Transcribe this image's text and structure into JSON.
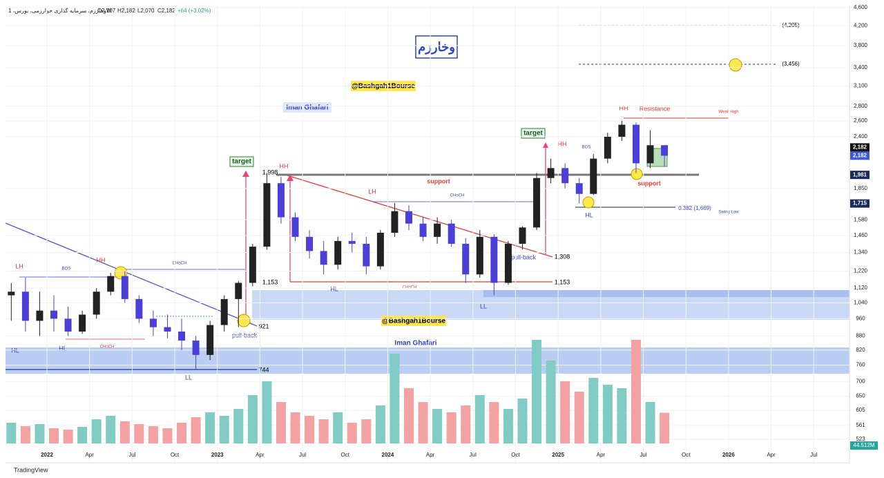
{
  "chart_data": {
    "type": "candlestick",
    "header": {
      "symbol": "وخارزم، سرمایه گذاری خوارزمی، بورس، 1W",
      "open": "O2,107",
      "high": "H2,182",
      "low": "L2,070",
      "close": "C2,182",
      "change": "+64 (+3.02%)"
    },
    "footer": "TradingView",
    "log_scale": true,
    "ylim": [
      523,
      4600
    ],
    "yticks": [
      {
        "value": 4600,
        "label": "4,600"
      },
      {
        "value": 4200,
        "label": "4,200"
      },
      {
        "value": 3800,
        "label": "3,800"
      },
      {
        "value": 3400,
        "label": "3,400"
      },
      {
        "value": 3100,
        "label": "3,100"
      },
      {
        "value": 2800,
        "label": "2,800"
      },
      {
        "value": 2600,
        "label": "2,600"
      },
      {
        "value": 2400,
        "label": "2,400"
      },
      {
        "value": 1850,
        "label": "1,850"
      },
      {
        "value": 1580,
        "label": "1,580"
      },
      {
        "value": 1460,
        "label": "1,460"
      },
      {
        "value": 1340,
        "label": "1,340"
      },
      {
        "value": 1220,
        "label": "1,220"
      },
      {
        "value": 1120,
        "label": "1,120"
      },
      {
        "value": 1040,
        "label": "1,040"
      },
      960,
      880,
      820,
      760,
      700,
      650,
      605,
      561,
      523
    ],
    "price_tags": [
      {
        "value": 2182,
        "label": "2,182"
      },
      {
        "value": 2182,
        "label": "2,182"
      },
      {
        "value": 1981,
        "label": "1,981"
      },
      {
        "value": 1715,
        "label": "1,715"
      }
    ],
    "volume_tag": "44.512M",
    "xticks": [
      {
        "value": "2022-01",
        "label": "2022"
      },
      {
        "value": "2022-04",
        "label": "Apr"
      },
      {
        "value": "2022-07",
        "label": "Jul"
      },
      {
        "value": "2022-10",
        "label": "Oct"
      },
      {
        "value": "2023-01",
        "label": "2023"
      },
      {
        "value": "2023-04",
        "label": "Apr"
      },
      {
        "value": "2023-07",
        "label": "Jul"
      },
      {
        "value": "2023-10",
        "label": "Oct"
      },
      {
        "value": "2024-01",
        "label": "2024"
      },
      {
        "value": "2024-04",
        "label": "Apr"
      },
      {
        "value": "2024-07",
        "label": "Jul"
      },
      {
        "value": "2024-10",
        "label": "Oct"
      },
      {
        "value": "2025-01",
        "label": "2025"
      },
      {
        "value": "2025-04",
        "label": "Apr"
      },
      {
        "value": "2025-07",
        "label": "Jul"
      },
      {
        "value": "2025-10",
        "label": "Oct"
      },
      {
        "value": "2026-01",
        "label": "2026"
      },
      {
        "value": "2026-04",
        "label": "Apr"
      },
      {
        "value": "2026-07",
        "label": "Jul"
      }
    ],
    "candles": [
      {
        "date": "2021-10",
        "open": 1080,
        "high": 1150,
        "low": 950,
        "close": 1100
      },
      {
        "date": "2021-11",
        "open": 1100,
        "high": 1180,
        "low": 900,
        "close": 950
      },
      {
        "date": "2021-12",
        "open": 950,
        "high": 1100,
        "low": 880,
        "close": 1000
      },
      {
        "date": "2022-01",
        "open": 1000,
        "high": 1080,
        "low": 900,
        "close": 960
      },
      {
        "date": "2022-02",
        "open": 960,
        "high": 1020,
        "low": 880,
        "close": 900
      },
      {
        "date": "2022-03",
        "open": 900,
        "high": 1000,
        "low": 890,
        "close": 980
      },
      {
        "date": "2022-04",
        "open": 980,
        "high": 1120,
        "low": 960,
        "close": 1100
      },
      {
        "date": "2022-05",
        "open": 1100,
        "high": 1210,
        "low": 1080,
        "close": 1190
      },
      {
        "date": "2022-06",
        "open": 1190,
        "high": 1220,
        "low": 1040,
        "close": 1060
      },
      {
        "date": "2022-07",
        "open": 1060,
        "high": 1080,
        "low": 940,
        "close": 960
      },
      {
        "date": "2022-08",
        "open": 960,
        "high": 1000,
        "low": 880,
        "close": 920
      },
      {
        "date": "2022-09",
        "open": 920,
        "high": 980,
        "low": 870,
        "close": 900
      },
      {
        "date": "2022-10",
        "open": 900,
        "high": 960,
        "low": 820,
        "close": 860
      },
      {
        "date": "2022-11",
        "open": 860,
        "high": 880,
        "low": 744,
        "close": 800
      },
      {
        "date": "2022-12",
        "open": 800,
        "high": 950,
        "low": 780,
        "close": 930
      },
      {
        "date": "2023-01",
        "open": 930,
        "high": 1080,
        "low": 900,
        "close": 1060
      },
      {
        "date": "2023-02",
        "open": 1060,
        "high": 1160,
        "low": 921,
        "close": 1150
      },
      {
        "date": "2023-03",
        "open": 1150,
        "high": 1400,
        "low": 1130,
        "close": 1380
      },
      {
        "date": "2023-04",
        "open": 1380,
        "high": 1998,
        "low": 1360,
        "close": 1900
      },
      {
        "date": "2023-05",
        "open": 1900,
        "high": 1960,
        "low": 1550,
        "close": 1600
      },
      {
        "date": "2023-06",
        "open": 1600,
        "high": 1640,
        "low": 1420,
        "close": 1450
      },
      {
        "date": "2023-07",
        "open": 1450,
        "high": 1500,
        "low": 1300,
        "close": 1350
      },
      {
        "date": "2023-08",
        "open": 1350,
        "high": 1420,
        "low": 1200,
        "close": 1260
      },
      {
        "date": "2023-09",
        "open": 1260,
        "high": 1450,
        "low": 1230,
        "close": 1420
      },
      {
        "date": "2023-10",
        "open": 1420,
        "high": 1480,
        "low": 1340,
        "close": 1400
      },
      {
        "date": "2023-11",
        "open": 1400,
        "high": 1450,
        "low": 1200,
        "close": 1250
      },
      {
        "date": "2023-12",
        "open": 1250,
        "high": 1500,
        "low": 1230,
        "close": 1480
      },
      {
        "date": "2024-01",
        "open": 1480,
        "high": 1720,
        "low": 1450,
        "close": 1650
      },
      {
        "date": "2024-02",
        "open": 1650,
        "high": 1700,
        "low": 1500,
        "close": 1550
      },
      {
        "date": "2024-03",
        "open": 1550,
        "high": 1600,
        "low": 1420,
        "close": 1450
      },
      {
        "date": "2024-04",
        "open": 1450,
        "high": 1600,
        "low": 1400,
        "close": 1550
      },
      {
        "date": "2024-05",
        "open": 1550,
        "high": 1580,
        "low": 1380,
        "close": 1400
      },
      {
        "date": "2024-06",
        "open": 1400,
        "high": 1440,
        "low": 1150,
        "close": 1200
      },
      {
        "date": "2024-07",
        "open": 1200,
        "high": 1500,
        "low": 1180,
        "close": 1450
      },
      {
        "date": "2024-08",
        "open": 1450,
        "high": 1470,
        "low": 1080,
        "close": 1150
      },
      {
        "date": "2024-09",
        "open": 1150,
        "high": 1420,
        "low": 1140,
        "close": 1400
      },
      {
        "date": "2024-10",
        "open": 1400,
        "high": 1530,
        "low": 1360,
        "close": 1520
      },
      {
        "date": "2024-11",
        "open": 1520,
        "high": 2000,
        "low": 1500,
        "close": 1950
      },
      {
        "date": "2024-12",
        "open": 1950,
        "high": 2150,
        "low": 1900,
        "close": 2050
      },
      {
        "date": "2025-01",
        "open": 2050,
        "high": 2100,
        "low": 1850,
        "close": 1900
      },
      {
        "date": "2025-02",
        "open": 1900,
        "high": 1950,
        "low": 1715,
        "close": 1800
      },
      {
        "date": "2025-03",
        "open": 1800,
        "high": 2200,
        "low": 1790,
        "close": 2150
      },
      {
        "date": "2025-04",
        "open": 2150,
        "high": 2450,
        "low": 2100,
        "close": 2400
      },
      {
        "date": "2025-05",
        "open": 2400,
        "high": 2600,
        "low": 2350,
        "close": 2550
      },
      {
        "date": "2025-06",
        "open": 2550,
        "high": 2580,
        "low": 2000,
        "close": 2100
      },
      {
        "date": "2025-07",
        "open": 2100,
        "high": 2480,
        "low": 2050,
        "close": 2300
      },
      {
        "date": "2025-08",
        "open": 2300,
        "high": 2300,
        "low": 2070,
        "close": 2182
      }
    ],
    "volume": [
      30,
      25,
      28,
      22,
      20,
      24,
      35,
      40,
      32,
      28,
      25,
      22,
      30,
      38,
      45,
      40,
      50,
      70,
      90,
      60,
      45,
      40,
      35,
      45,
      30,
      35,
      55,
      130,
      80,
      60,
      50,
      45,
      55,
      70,
      60,
      50,
      65,
      150,
      120,
      90,
      75,
      95,
      85,
      80,
      150,
      60,
      44.512
    ],
    "annotations": [
      "target",
      "target",
      "HH",
      "LH",
      "BOS",
      "CHoCH",
      "HL",
      "HL",
      "CHoCH",
      "LL",
      "pull-back",
      "921",
      "744",
      "HH",
      "1,998",
      "1,153",
      "HL",
      "LH",
      "support",
      "CHoCH",
      "CHoCH",
      "pull-back",
      "1,308",
      "1,153",
      "LL",
      "HH",
      "BOS",
      "HH",
      "Resistance",
      "Weak High",
      "support",
      "HL",
      "0.382 (1,669)",
      "Swing Low",
      "(4,205)",
      "(3,456)",
      "@Bashgah1Bourse",
      "@Bashgah1Bourse",
      "Iman Ghafari",
      "Iman Ghafari",
      "وخارزم"
    ]
  }
}
